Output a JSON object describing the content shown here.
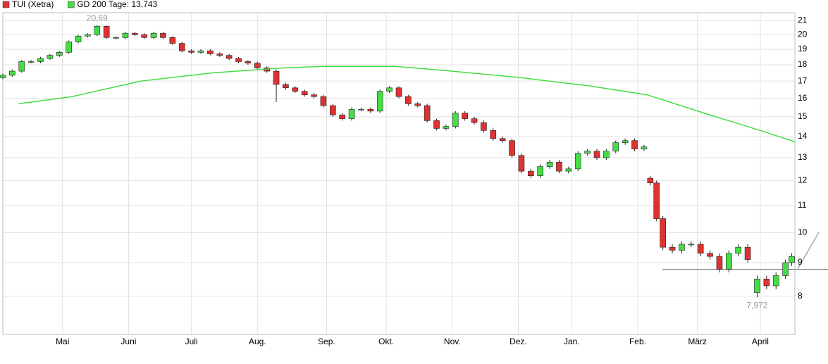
{
  "chart_data": {
    "type": "candlestick",
    "log_scale": true,
    "grid": true,
    "legend_position": "top-left",
    "up_color": "#44dd44",
    "down_color": "#dd3333",
    "xlim": [
      0,
      252
    ],
    "xticks": [
      {
        "value": 19,
        "label": "Mai"
      },
      {
        "value": 40,
        "label": "Juni"
      },
      {
        "value": 60,
        "label": "Juli"
      },
      {
        "value": 81,
        "label": "Aug."
      },
      {
        "value": 103,
        "label": "Sep."
      },
      {
        "value": 122,
        "label": "Okt."
      },
      {
        "value": 143,
        "label": "Nov."
      },
      {
        "value": 164,
        "label": "Dez."
      },
      {
        "value": 181,
        "label": "Jan."
      },
      {
        "value": 202,
        "label": "Feb."
      },
      {
        "value": 221,
        "label": "März"
      },
      {
        "value": 241,
        "label": "April"
      }
    ],
    "ylim": [
      7.0,
      21.6
    ],
    "yticks": [
      8,
      9,
      10,
      11,
      12,
      13,
      14,
      15,
      16,
      17,
      18,
      19,
      20,
      21
    ],
    "hline": 8.79,
    "series": [
      {
        "name": "TUI (Xetra)",
        "color": "#dd3333",
        "x": [
          0,
          3,
          6,
          9,
          12,
          15,
          18,
          21,
          24,
          27,
          30,
          33,
          36,
          39,
          42,
          45,
          48,
          51,
          54,
          57,
          60,
          63,
          66,
          69,
          72,
          75,
          78,
          81,
          84,
          87,
          90,
          93,
          96,
          99,
          102,
          105,
          108,
          111,
          114,
          117,
          120,
          123,
          126,
          129,
          132,
          135,
          138,
          141,
          144,
          147,
          150,
          153,
          156,
          159,
          162,
          165,
          168,
          171,
          174,
          177,
          180,
          183,
          186,
          189,
          192,
          195,
          198,
          201,
          204,
          206,
          208,
          210,
          213,
          216,
          219,
          222,
          225,
          228,
          231,
          234,
          237,
          240,
          243,
          246,
          249,
          251
        ],
        "open": [
          17.2,
          17.35,
          17.6,
          18.2,
          18.2,
          18.4,
          18.6,
          18.8,
          19.5,
          19.9,
          20.0,
          20.6,
          19.8,
          19.8,
          20.1,
          20.0,
          19.8,
          20.1,
          19.8,
          19.4,
          18.9,
          18.8,
          18.9,
          18.7,
          18.6,
          18.4,
          18.2,
          18.1,
          17.8,
          17.6,
          16.8,
          16.6,
          16.4,
          16.2,
          16.1,
          15.6,
          15.1,
          14.9,
          15.4,
          15.4,
          15.3,
          16.4,
          16.6,
          16.1,
          15.7,
          15.6,
          14.8,
          14.4,
          14.5,
          15.2,
          14.9,
          14.7,
          14.3,
          13.9,
          13.8,
          13.1,
          12.4,
          12.2,
          12.6,
          12.8,
          12.4,
          12.5,
          13.2,
          13.3,
          13.0,
          13.3,
          13.7,
          13.8,
          13.4,
          12.1,
          11.9,
          10.5,
          9.5,
          9.4,
          9.6,
          9.6,
          9.3,
          9.2,
          8.8,
          9.3,
          9.5,
          8.1,
          8.5,
          8.3,
          8.6,
          9.0
        ],
        "high": [
          17.45,
          17.7,
          18.3,
          18.3,
          18.5,
          18.7,
          18.9,
          19.6,
          20.0,
          20.1,
          20.69,
          20.65,
          19.9,
          20.2,
          20.2,
          20.1,
          20.2,
          20.2,
          19.9,
          19.5,
          19.0,
          19.0,
          19.0,
          18.8,
          18.7,
          18.5,
          18.3,
          18.2,
          17.9,
          17.7,
          16.9,
          16.7,
          16.5,
          16.3,
          16.2,
          15.7,
          15.2,
          15.5,
          15.5,
          15.5,
          16.5,
          16.7,
          16.7,
          16.2,
          15.8,
          15.7,
          14.9,
          14.6,
          15.3,
          15.3,
          15.0,
          14.8,
          14.4,
          14.0,
          13.9,
          13.2,
          12.5,
          12.7,
          12.9,
          12.9,
          12.6,
          13.3,
          13.4,
          13.4,
          13.4,
          13.8,
          13.9,
          13.9,
          13.6,
          12.2,
          12.0,
          10.6,
          9.6,
          9.7,
          9.7,
          9.7,
          9.4,
          9.3,
          9.4,
          9.6,
          9.6,
          8.6,
          8.6,
          8.7,
          9.1,
          9.3
        ],
        "low": [
          17.1,
          17.25,
          17.5,
          18.1,
          18.1,
          18.3,
          18.5,
          18.7,
          19.4,
          19.8,
          19.9,
          19.7,
          19.7,
          19.7,
          19.9,
          19.7,
          19.7,
          19.7,
          19.3,
          18.8,
          18.7,
          18.7,
          18.6,
          18.5,
          18.3,
          18.1,
          18.0,
          17.7,
          17.5,
          15.8,
          16.5,
          16.3,
          16.1,
          16.0,
          15.5,
          15.0,
          14.8,
          14.8,
          15.3,
          15.2,
          15.2,
          16.3,
          16.0,
          15.6,
          15.5,
          14.7,
          14.3,
          14.3,
          14.4,
          14.8,
          14.6,
          14.2,
          13.8,
          13.7,
          13.0,
          12.3,
          12.1,
          12.1,
          12.5,
          12.3,
          12.3,
          12.4,
          13.1,
          12.9,
          12.9,
          13.2,
          13.6,
          13.3,
          13.3,
          11.8,
          10.4,
          9.4,
          9.3,
          9.3,
          9.5,
          9.2,
          9.1,
          8.7,
          8.7,
          9.2,
          9.0,
          7.972,
          8.2,
          8.2,
          8.5,
          8.9
        ],
        "close": [
          17.35,
          17.6,
          18.2,
          18.2,
          18.4,
          18.6,
          18.8,
          19.5,
          19.9,
          20.0,
          20.6,
          19.8,
          19.8,
          20.1,
          20.0,
          19.8,
          20.1,
          19.8,
          19.4,
          18.9,
          18.8,
          18.9,
          18.7,
          18.6,
          18.4,
          18.2,
          18.1,
          17.8,
          17.6,
          16.8,
          16.6,
          16.4,
          16.2,
          16.1,
          15.6,
          15.1,
          14.9,
          15.4,
          15.4,
          15.3,
          16.4,
          16.6,
          16.1,
          15.7,
          15.6,
          14.8,
          14.4,
          14.5,
          15.2,
          14.9,
          14.7,
          14.3,
          13.9,
          13.8,
          13.1,
          12.4,
          12.2,
          12.6,
          12.8,
          12.4,
          12.5,
          13.2,
          13.3,
          13.0,
          13.3,
          13.7,
          13.8,
          13.4,
          13.5,
          11.9,
          10.5,
          9.5,
          9.4,
          9.6,
          9.6,
          9.3,
          9.2,
          8.8,
          9.3,
          9.5,
          9.1,
          8.5,
          8.3,
          8.6,
          9.0,
          9.2
        ]
      },
      {
        "name": "GD 200 Tage: 13,743",
        "color": "#44dd44",
        "type": "line",
        "x": [
          5,
          22,
          44,
          67,
          89,
          102,
          125,
          143,
          165,
          187,
          205,
          223,
          241,
          252
        ],
        "values": [
          15.7,
          16.1,
          17.0,
          17.5,
          17.8,
          17.9,
          17.9,
          17.6,
          17.2,
          16.7,
          16.2,
          15.2,
          14.3,
          13.743
        ]
      }
    ],
    "annotations": [
      {
        "text": "20,69",
        "x": 30,
        "y": 20.69
      },
      {
        "text": "7,972",
        "x": 240,
        "y": 7.972
      }
    ]
  }
}
